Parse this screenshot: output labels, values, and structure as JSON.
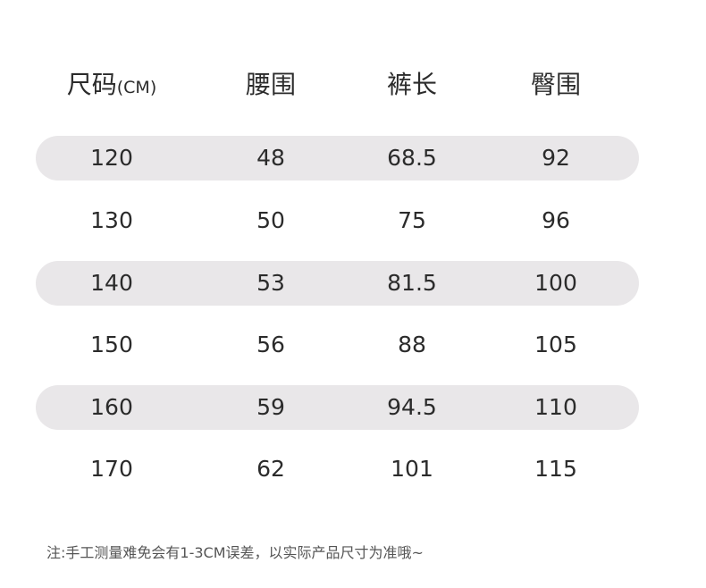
{
  "table": {
    "headers": [
      "尺码",
      "腰围",
      "裤长",
      "臀围"
    ],
    "size_unit": "(CM)",
    "rows": [
      [
        "120",
        "48",
        "68.5",
        "92"
      ],
      [
        "130",
        "50",
        "75",
        "96"
      ],
      [
        "140",
        "53",
        "81.5",
        "100"
      ],
      [
        "150",
        "56",
        "88",
        "105"
      ],
      [
        "160",
        "59",
        "94.5",
        "110"
      ],
      [
        "170",
        "62",
        "101",
        "115"
      ]
    ]
  },
  "note": "注:手工测量难免会有1-3CM误差，以实际产品尺寸为准哦~",
  "colors": {
    "band": "#e9e7e9",
    "text": "#2b2b2b",
    "note": "#555555"
  }
}
